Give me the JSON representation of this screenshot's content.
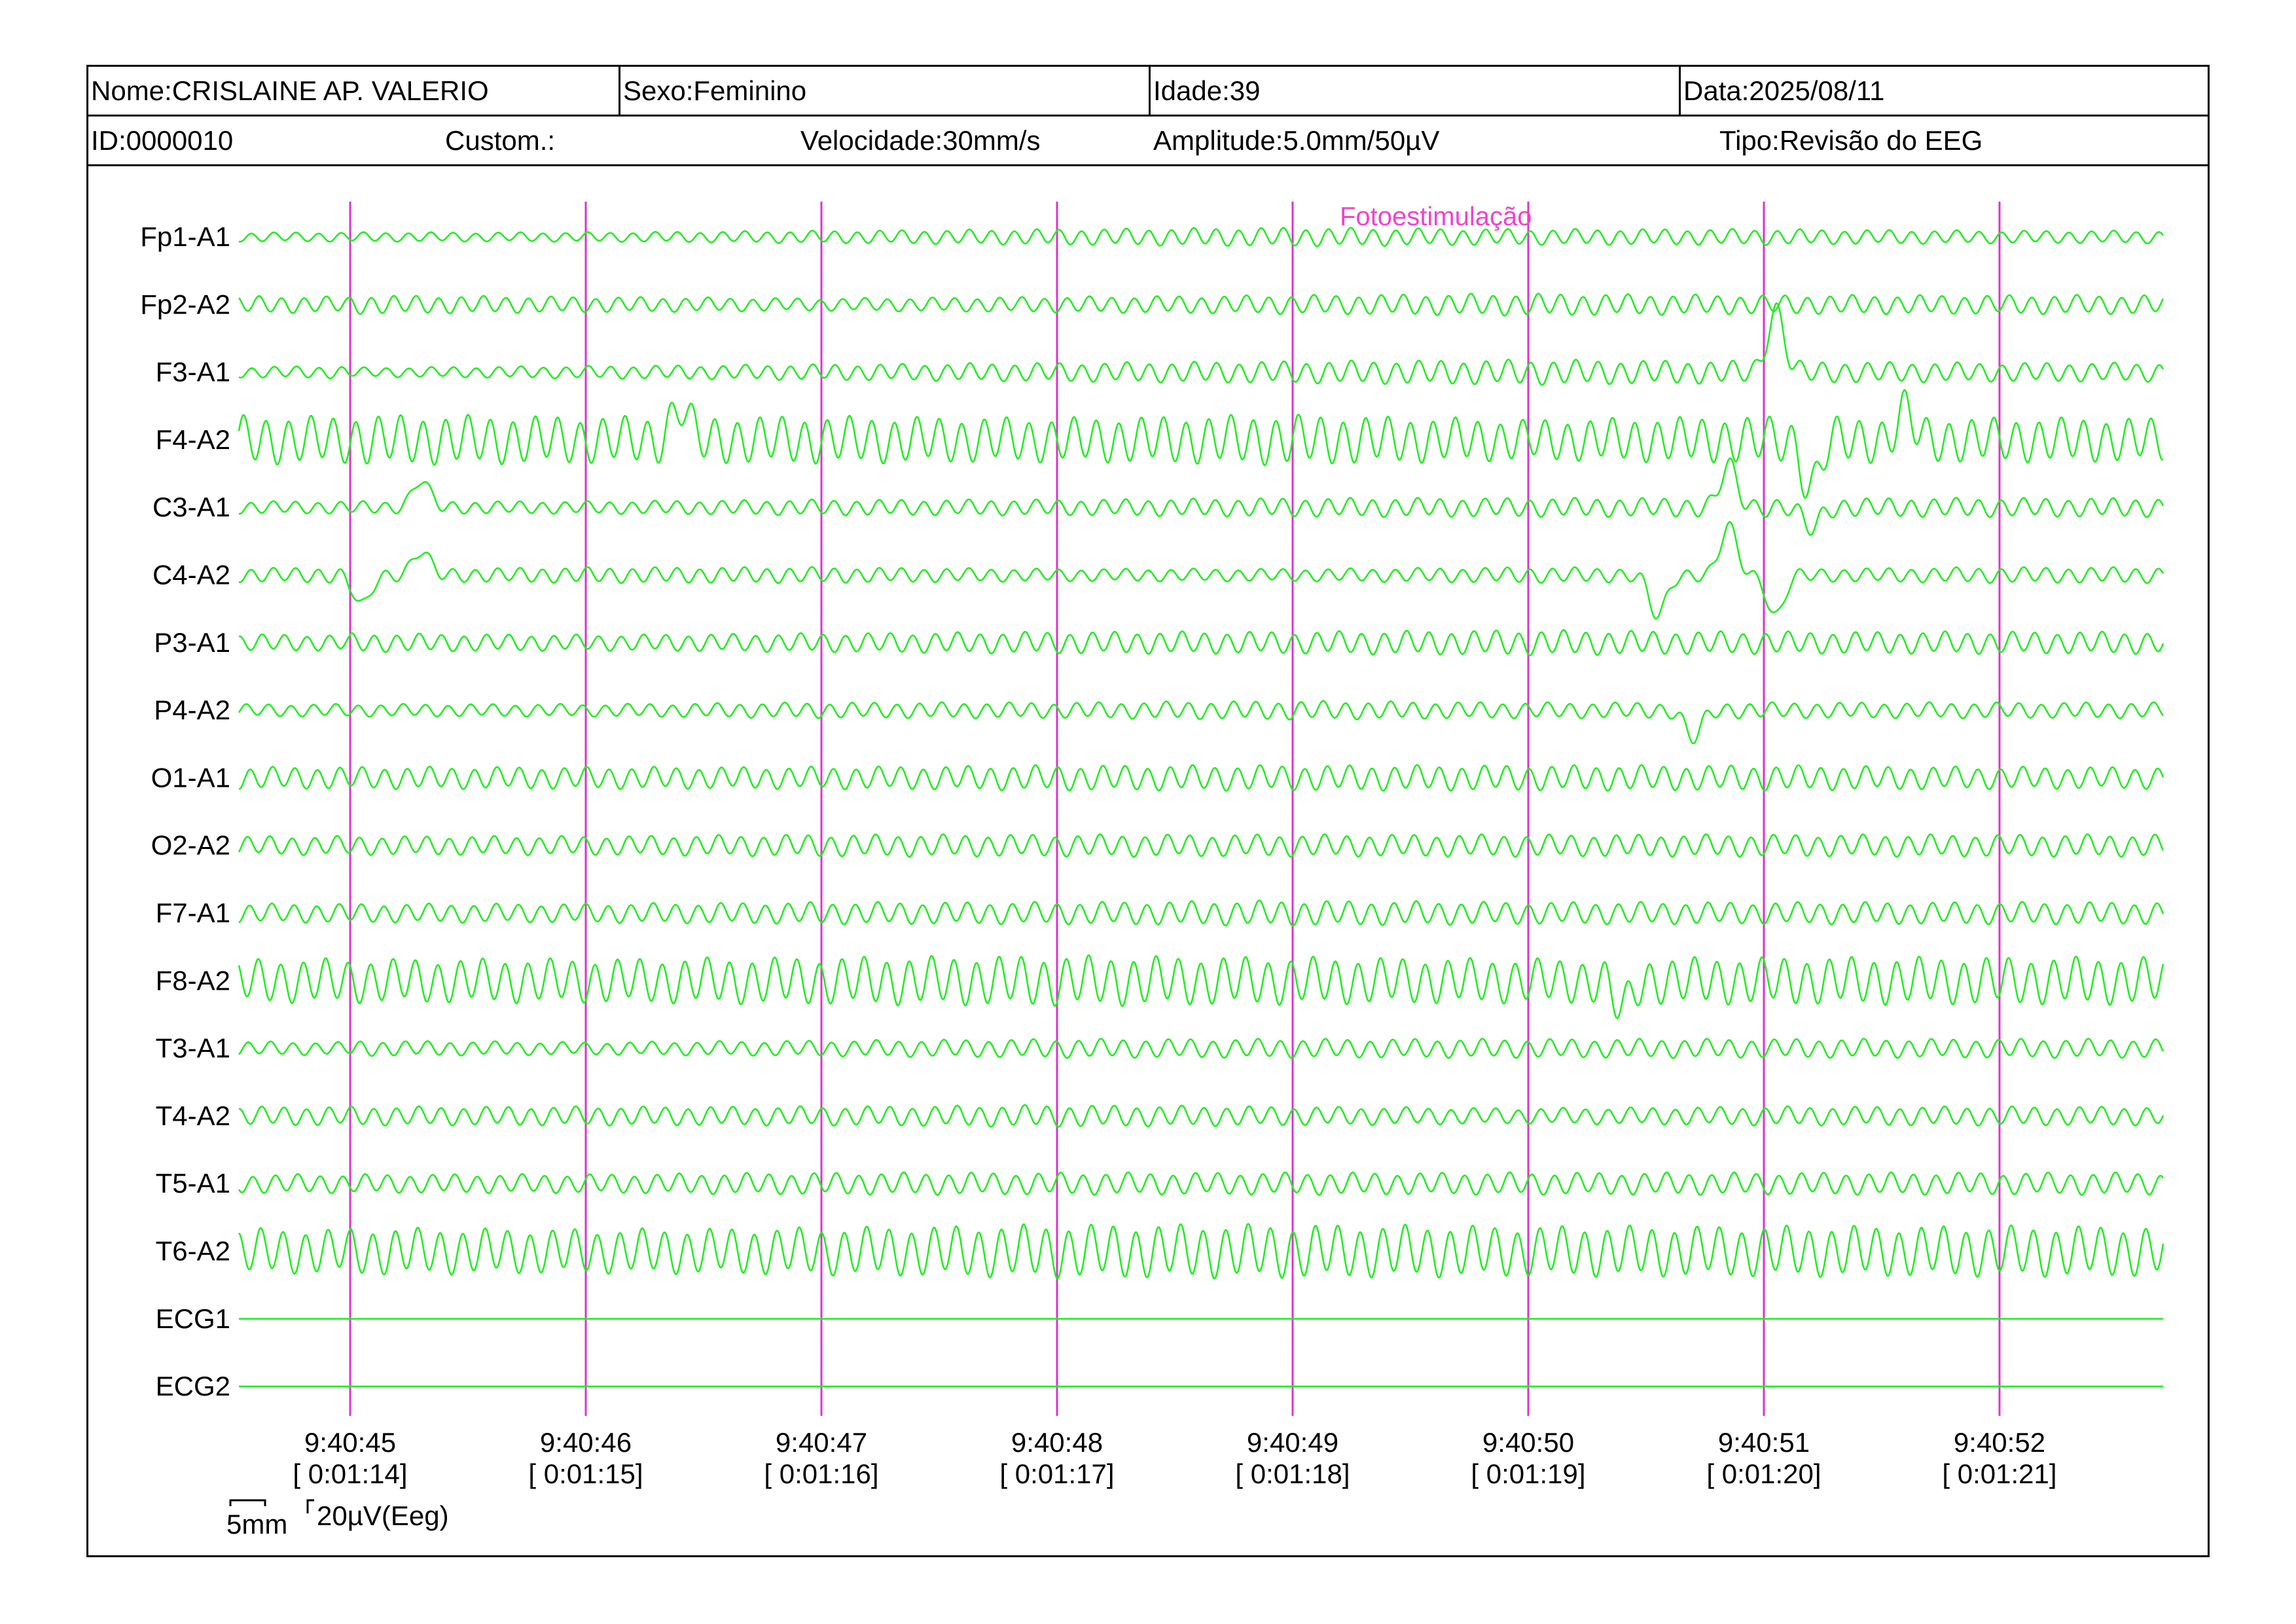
{
  "header": {
    "name": "Nome:CRISLAINE AP. VALERIO",
    "sex": "Sexo:Feminino",
    "age": "Idade:39",
    "date": "Data:2025/08/11",
    "id": "ID:0000010",
    "custom": "Custom.:",
    "speed": "Velocidade:30mm/s",
    "amplitude": "Amplitude:5.0mm/50µV",
    "type": "Tipo:Revisão do EEG"
  },
  "annotation": "Fotoestimulação",
  "scale_bar": {
    "time_label": "5mm",
    "amp_label": "20µV(Eeg)"
  },
  "colors": {
    "trace": "#22ee22",
    "marker": "#dd33cc",
    "annotation": "#ee44cc",
    "frame": "#000000"
  },
  "chart_data": {
    "type": "line",
    "title": "",
    "xlabel": "",
    "ylabel": "",
    "x_ticks": [
      {
        "time": "9:40:45",
        "elapsed": "[ 0:01:14]"
      },
      {
        "time": "9:40:46",
        "elapsed": "[ 0:01:15]"
      },
      {
        "time": "9:40:47",
        "elapsed": "[ 0:01:16]"
      },
      {
        "time": "9:40:48",
        "elapsed": "[ 0:01:17]"
      },
      {
        "time": "9:40:49",
        "elapsed": "[ 0:01:18]"
      },
      {
        "time": "9:40:50",
        "elapsed": "[ 0:01:19]"
      },
      {
        "time": "9:40:51",
        "elapsed": "[ 0:01:20]"
      },
      {
        "time": "9:40:52",
        "elapsed": "[ 0:01:21]"
      }
    ],
    "xlim_seconds": [
      -0.47,
      7.7
    ],
    "sine_frequency_hz": 10.5,
    "amplitude_unit": "µV",
    "series": [
      {
        "name": "Fp1-A1",
        "amplitude": [
          6,
          6,
          8,
          10,
          12,
          10,
          10,
          8
        ],
        "events": []
      },
      {
        "name": "Fp2-A2",
        "amplitude": [
          12,
          10,
          8,
          10,
          12,
          14,
          12,
          12
        ],
        "events": []
      },
      {
        "name": "F3-A1",
        "amplitude": [
          6,
          8,
          10,
          12,
          14,
          16,
          14,
          12
        ],
        "events": [
          {
            "t": 6.05,
            "amp": 90
          }
        ]
      },
      {
        "name": "F4-A2",
        "amplitude": [
          32,
          30,
          30,
          28,
          32,
          26,
          30,
          28
        ],
        "events": [
          {
            "t": 1.4,
            "amp": 50
          },
          {
            "t": 6.2,
            "amp": -70
          },
          {
            "t": 6.6,
            "amp": 40
          }
        ]
      },
      {
        "name": "C3-A1",
        "amplitude": [
          8,
          8,
          10,
          10,
          12,
          12,
          12,
          12
        ],
        "events": [
          {
            "t": 0.3,
            "amp": 40
          },
          {
            "t": 5.85,
            "amp": 60
          },
          {
            "t": 6.2,
            "amp": -30
          }
        ]
      },
      {
        "name": "C4-A2",
        "amplitude": [
          8,
          10,
          10,
          8,
          8,
          10,
          8,
          10
        ],
        "events": [
          {
            "t": 0.05,
            "amp": -45
          },
          {
            "t": 0.3,
            "amp": 35
          },
          {
            "t": 5.55,
            "amp": -60
          },
          {
            "t": 5.85,
            "amp": 70
          },
          {
            "t": 6.05,
            "amp": -60
          }
        ]
      },
      {
        "name": "P3-A1",
        "amplitude": [
          12,
          10,
          12,
          14,
          14,
          16,
          14,
          14
        ],
        "events": []
      },
      {
        "name": "P4-A2",
        "amplitude": [
          8,
          8,
          10,
          10,
          12,
          10,
          10,
          10
        ],
        "events": [
          {
            "t": 5.7,
            "amp": -40
          }
        ]
      },
      {
        "name": "O1-A1",
        "amplitude": [
          14,
          14,
          14,
          16,
          16,
          16,
          16,
          14
        ],
        "events": []
      },
      {
        "name": "O2-A2",
        "amplitude": [
          12,
          12,
          14,
          14,
          14,
          14,
          14,
          14
        ],
        "events": []
      },
      {
        "name": "F7-A1",
        "amplitude": [
          12,
          12,
          14,
          14,
          16,
          14,
          14,
          14
        ],
        "events": []
      },
      {
        "name": "F8-A2",
        "amplitude": [
          28,
          28,
          30,
          32,
          30,
          28,
          30,
          30
        ],
        "events": [
          {
            "t": 5.4,
            "amp": -40
          }
        ]
      },
      {
        "name": "T3-A1",
        "amplitude": [
          10,
          8,
          10,
          12,
          12,
          12,
          12,
          12
        ],
        "events": []
      },
      {
        "name": "T4-A2",
        "amplitude": [
          12,
          12,
          12,
          14,
          12,
          10,
          12,
          12
        ],
        "events": []
      },
      {
        "name": "T5-A1",
        "amplitude": [
          12,
          12,
          14,
          14,
          14,
          14,
          14,
          14
        ],
        "events": []
      },
      {
        "name": "T6-A2",
        "amplitude": [
          30,
          28,
          30,
          34,
          34,
          32,
          32,
          32
        ],
        "events": []
      },
      {
        "name": "ECG1",
        "amplitude": [
          0,
          0,
          0,
          0,
          0,
          0,
          0,
          0
        ],
        "events": []
      },
      {
        "name": "ECG2",
        "amplitude": [
          0,
          0,
          0,
          0,
          0,
          0,
          0,
          0
        ],
        "events": []
      }
    ],
    "annotations": [
      {
        "text": "Fotoestimulação",
        "t": 4.1
      }
    ],
    "grid": false,
    "legend": "none"
  }
}
